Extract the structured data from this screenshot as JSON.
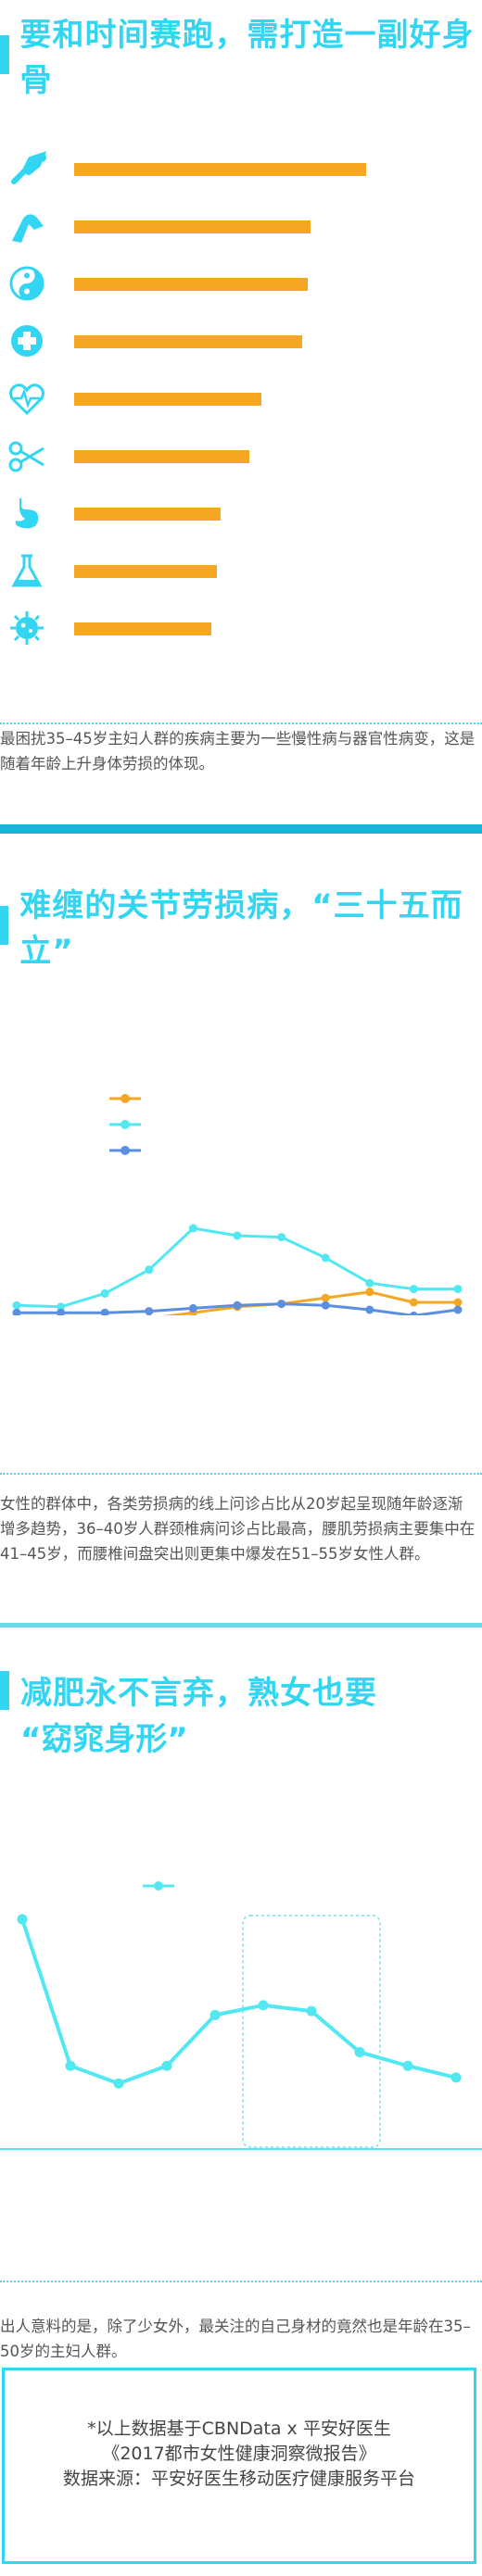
{
  "section1": {
    "title": "要和时间赛跑，需打造一副好身骨",
    "desc": "最困扰35–45岁主妇人群的疾病主要为一些慢性病与器官性病变，这是随着年龄上升身体劳损的体现。"
  },
  "section2": {
    "title": "难缠的关节劳损病，“三十五而立”",
    "desc": "女性的群体中，各类劳损病的线上问诊占比从20岁起呈现随年龄逐渐增多趋势，36–40岁人群颈椎病问诊占比最高，腰肌劳损病主要集中在41–45岁，而腰椎间盘突出则更集中爆发在51–55岁女性人群。"
  },
  "section3": {
    "title_line1": "减肥永不言弃，熟女也要",
    "title_line2": "“窈窕身形”",
    "desc": "出人意料的是，除了少女外，最关注的自己身材的竟然也是年龄在35–50岁的主妇人群。"
  },
  "footer": {
    "line1": "*以上数据基于CBNData x 平安好医生",
    "line2": "《2017都市女性健康洞察微报告》",
    "line3": "数据来源：平安好医生移动医疗健康服务平台"
  },
  "colors": {
    "accent": "#33d6f2",
    "orange": "#f5a623",
    "blue": "#5b8fe0",
    "band": "#14b6d8"
  },
  "chart_data": [
    {
      "type": "bar",
      "orientation": "horizontal",
      "categories": [
        "bone-joint-icon",
        "knee-icon",
        "yin-yang-icon",
        "medical-cross-icon",
        "heart-pulse-icon",
        "scissors-icon",
        "stomach-icon",
        "flask-icon",
        "virus-icon"
      ],
      "values": [
        100,
        81,
        80,
        78,
        64,
        60,
        50,
        49,
        47
      ],
      "xlim": [
        0,
        100
      ],
      "grid": false
    },
    {
      "type": "line",
      "x": [
        "1",
        "2",
        "3",
        "4",
        "5",
        "6",
        "7",
        "8",
        "9",
        "10",
        "11"
      ],
      "series": [
        {
          "color": "#f5a623",
          "values": [
            2,
            2,
            3,
            4,
            8,
            12,
            14,
            18,
            22,
            15,
            15
          ]
        },
        {
          "color": "#52e8f2",
          "values": [
            13,
            12,
            21,
            37,
            65,
            60,
            59,
            45,
            28,
            24,
            24
          ]
        },
        {
          "color": "#5b8fe0",
          "values": [
            8,
            8,
            8,
            9,
            11,
            13,
            14,
            13,
            10,
            6,
            10
          ]
        }
      ],
      "ylim": [
        0,
        100
      ],
      "legend": "top-left",
      "grid": false
    },
    {
      "type": "line",
      "x": [
        "1",
        "2",
        "3",
        "4",
        "5",
        "6",
        "7",
        "8",
        "9",
        "10"
      ],
      "series": [
        {
          "color": "#52e8f2",
          "values": [
            100,
            25,
            16,
            25,
            51,
            56,
            53,
            32,
            25,
            19
          ]
        }
      ],
      "highlight_range": [
        5,
        7
      ],
      "legend": "top-left",
      "grid": false
    }
  ]
}
